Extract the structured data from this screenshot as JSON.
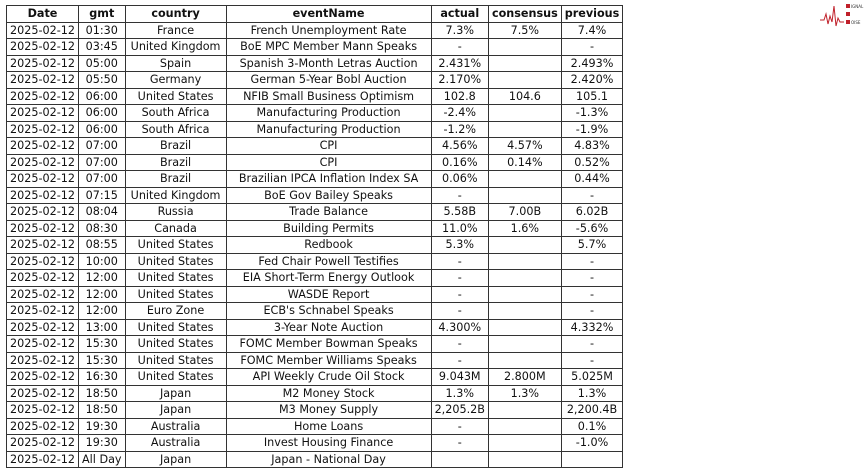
{
  "logo": {
    "text": "Signal 2 Noise",
    "color": "#c0202a"
  },
  "table": {
    "headers": [
      "Date",
      "gmt",
      "country",
      "eventName",
      "actual",
      "consensus",
      "previous"
    ],
    "rows": [
      [
        "2025-02-12",
        "01:30",
        "France",
        "French Unemployment Rate",
        "7.3%",
        "7.5%",
        "7.4%"
      ],
      [
        "2025-02-12",
        "03:45",
        "United Kingdom",
        "BoE MPC Member Mann Speaks",
        "-",
        "",
        "-"
      ],
      [
        "2025-02-12",
        "05:00",
        "Spain",
        "Spanish 3-Month Letras Auction",
        "2.431%",
        "",
        "2.493%"
      ],
      [
        "2025-02-12",
        "05:50",
        "Germany",
        "German 5-Year Bobl Auction",
        "2.170%",
        "",
        "2.420%"
      ],
      [
        "2025-02-12",
        "06:00",
        "United States",
        "NFIB Small Business Optimism",
        "102.8",
        "104.6",
        "105.1"
      ],
      [
        "2025-02-12",
        "06:00",
        "South Africa",
        "Manufacturing Production",
        "-2.4%",
        "",
        "-1.3%"
      ],
      [
        "2025-02-12",
        "06:00",
        "South Africa",
        "Manufacturing Production",
        "-1.2%",
        "",
        "-1.9%"
      ],
      [
        "2025-02-12",
        "07:00",
        "Brazil",
        "CPI",
        "4.56%",
        "4.57%",
        "4.83%"
      ],
      [
        "2025-02-12",
        "07:00",
        "Brazil",
        "CPI",
        "0.16%",
        "0.14%",
        "0.52%"
      ],
      [
        "2025-02-12",
        "07:00",
        "Brazil",
        "Brazilian IPCA Inflation Index SA",
        "0.06%",
        "",
        "0.44%"
      ],
      [
        "2025-02-12",
        "07:15",
        "United Kingdom",
        "BoE Gov Bailey Speaks",
        "-",
        "",
        "-"
      ],
      [
        "2025-02-12",
        "08:04",
        "Russia",
        "Trade Balance",
        "5.58B",
        "7.00B",
        "6.02B"
      ],
      [
        "2025-02-12",
        "08:30",
        "Canada",
        "Building Permits",
        "11.0%",
        "1.6%",
        "-5.6%"
      ],
      [
        "2025-02-12",
        "08:55",
        "United States",
        "Redbook",
        "5.3%",
        "",
        "5.7%"
      ],
      [
        "2025-02-12",
        "10:00",
        "United States",
        "Fed Chair Powell Testifies",
        "-",
        "",
        "-"
      ],
      [
        "2025-02-12",
        "12:00",
        "United States",
        "EIA Short-Term Energy Outlook",
        "-",
        "",
        "-"
      ],
      [
        "2025-02-12",
        "12:00",
        "United States",
        "WASDE Report",
        "-",
        "",
        "-"
      ],
      [
        "2025-02-12",
        "12:00",
        "Euro Zone",
        "ECB's Schnabel Speaks",
        "-",
        "",
        "-"
      ],
      [
        "2025-02-12",
        "13:00",
        "United States",
        "3-Year Note Auction",
        "4.300%",
        "",
        "4.332%"
      ],
      [
        "2025-02-12",
        "15:30",
        "United States",
        "FOMC Member Bowman Speaks",
        "-",
        "",
        "-"
      ],
      [
        "2025-02-12",
        "15:30",
        "United States",
        "FOMC Member Williams Speaks",
        "-",
        "",
        "-"
      ],
      [
        "2025-02-12",
        "16:30",
        "United States",
        "API Weekly Crude Oil Stock",
        "9.043M",
        "2.800M",
        "5.025M"
      ],
      [
        "2025-02-12",
        "18:50",
        "Japan",
        "M2 Money Stock",
        "1.3%",
        "1.3%",
        "1.3%"
      ],
      [
        "2025-02-12",
        "18:50",
        "Japan",
        "M3 Money Supply",
        "2,205.2B",
        "",
        "2,200.4B"
      ],
      [
        "2025-02-12",
        "19:30",
        "Australia",
        "Home Loans",
        "-",
        "",
        "0.1%"
      ],
      [
        "2025-02-12",
        "19:30",
        "Australia",
        "Invest Housing Finance",
        "-",
        "",
        "-1.0%"
      ],
      [
        "2025-02-12",
        "All Day",
        "Japan",
        "Japan - National Day",
        "",
        "",
        ""
      ]
    ]
  }
}
